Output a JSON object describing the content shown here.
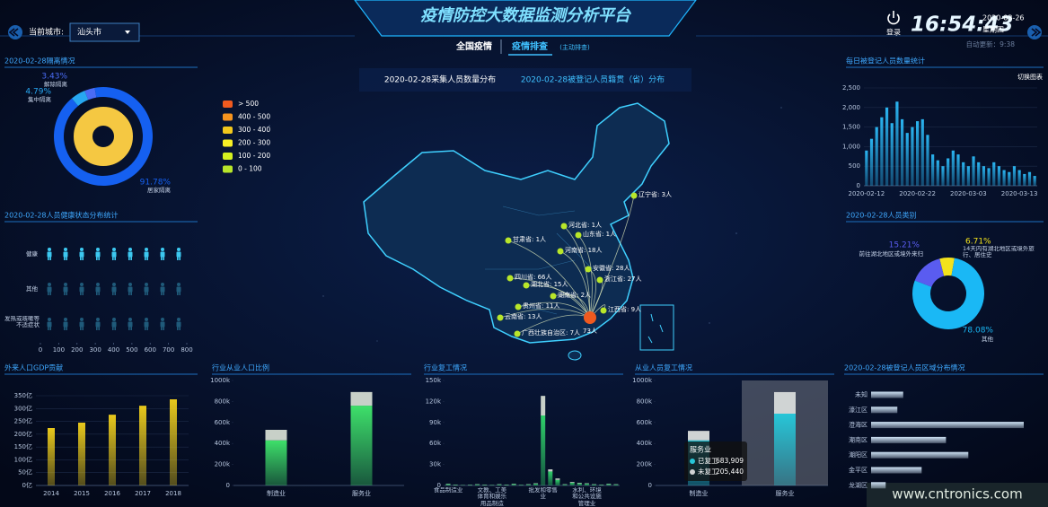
{
  "header": {
    "title": "疫情防控大数据监测分析平台",
    "city_label": "当前城市:",
    "city": "汕头市",
    "tabs": [
      "全国疫情",
      "疫情排查"
    ],
    "tab_note": "(主动排查)",
    "login": "登录",
    "time": "16:54:43",
    "date": "2020-03-26",
    "weekday": "星期四",
    "auto_update": "自动更新：9:38"
  },
  "watermark": "www.cntronics.com",
  "chart_data": [
    {
      "type": "donut",
      "title": "2020-02-28隔离情况",
      "categories": [
        "解除隔离",
        "集中隔离",
        "居家隔离"
      ],
      "values": [
        3.43,
        4.79,
        91.78
      ],
      "value_labels": [
        "3.43%",
        "4.79%",
        "91.78%"
      ],
      "colors": [
        "#4a6cf5",
        "#27a8f2",
        "#1560f0"
      ]
    },
    {
      "type": "pictorial",
      "title": "2020-02-28人员健康状态分布统计",
      "categories": [
        "健康",
        "其他",
        "发热或咳嗽等不适症状"
      ],
      "values": [
        780,
        8,
        2
      ],
      "xlim": [
        0,
        800
      ],
      "xticks": [
        0,
        100,
        200,
        300,
        400,
        500,
        600,
        700,
        800
      ],
      "color": "#3cc8f0"
    },
    {
      "type": "bar",
      "title": "外来人口GDP贡献",
      "categories": [
        "2014",
        "2015",
        "2016",
        "2017",
        "2018"
      ],
      "values": [
        224,
        245,
        276,
        311,
        336
      ],
      "color": "#e8c81c",
      "ylim": [
        0,
        350
      ],
      "yticks": [
        {
          "value": 0,
          "label": "0亿"
        },
        {
          "value": 50,
          "label": "50亿"
        },
        {
          "value": 100,
          "label": "100亿"
        },
        {
          "value": 150,
          "label": "150亿"
        },
        {
          "value": 200,
          "label": "200亿"
        },
        {
          "value": 250,
          "label": "250亿"
        },
        {
          "value": 300,
          "label": "300亿"
        },
        {
          "value": 350,
          "label": "350亿"
        }
      ]
    },
    {
      "type": "stacked-bar",
      "title": "行业从业人口比例",
      "categories": [
        "制造业",
        "服务业"
      ],
      "series": [
        {
          "color": "#3ee06a",
          "values": [
            430000,
            760000
          ]
        },
        {
          "color": "#c8d0c8",
          "values": [
            100000,
            130000
          ]
        }
      ],
      "ylim": [
        0,
        1000000
      ],
      "yticks": [
        0,
        {
          "value": 200000,
          "label": "200k"
        },
        {
          "value": 400000,
          "label": "400k"
        },
        {
          "value": 600000,
          "label": "600k"
        },
        {
          "value": 800000,
          "label": "800k"
        },
        {
          "value": 1000000,
          "label": "1000k"
        }
      ]
    },
    {
      "type": "stacked-bar",
      "title": "行业复工情况",
      "categories": [
        "食品制造业",
        null,
        null,
        null,
        null,
        null,
        "文教、工美体育和娱乐用品制造",
        null,
        null,
        null,
        null,
        null,
        null,
        "批发和零售业",
        null,
        null,
        null,
        null,
        null,
        "水利、环境和公共设施管理业",
        null,
        null,
        null,
        null
      ],
      "series": [
        {
          "color": "#2fd06a",
          "values": [
            2000,
            1000,
            500,
            800,
            1500,
            1000,
            600,
            1500,
            1000,
            2000,
            800,
            1500,
            2500,
            100000,
            20000,
            8000,
            1500,
            4000,
            3000,
            2500,
            1500,
            1000,
            2000,
            1500
          ]
        },
        {
          "color": "#c8d0c8",
          "values": [
            500,
            300,
            200,
            300,
            400,
            300,
            200,
            400,
            300,
            500,
            200,
            400,
            600,
            28000,
            3000,
            2000,
            400,
            1000,
            800,
            600,
            400,
            300,
            500,
            400
          ]
        }
      ],
      "ylim": [
        0,
        150000
      ],
      "yticks": [
        0,
        {
          "value": 30000,
          "label": "30k"
        },
        {
          "value": 60000,
          "label": "60k"
        },
        {
          "value": 90000,
          "label": "90k"
        },
        {
          "value": 120000,
          "label": "120k"
        },
        {
          "value": 150000,
          "label": "150k"
        }
      ]
    },
    {
      "type": "stacked-bar",
      "title": "从业人员复工情况",
      "categories": [
        "制造业",
        "服务业"
      ],
      "series": [
        {
          "name": "已复工",
          "color": "#27c6d8",
          "values": [
            430000,
            683909
          ],
          "value_labels": [
            null,
            "683,909"
          ]
        },
        {
          "name": "未复工",
          "color": "#d0d4d4",
          "values": [
            90000,
            205440
          ],
          "value_labels": [
            null,
            "205,440"
          ]
        }
      ],
      "ylim": [
        0,
        1000000
      ],
      "yticks": [
        0,
        {
          "value": 200000,
          "label": "200k"
        },
        {
          "value": 400000,
          "label": "400k"
        },
        {
          "value": 600000,
          "label": "600k"
        },
        {
          "value": 800000,
          "label": "800k"
        },
        {
          "value": 1000000,
          "label": "1000k"
        }
      ]
    },
    {
      "type": "bar",
      "title": "每日被登记人员数量统计",
      "button": "切换图表",
      "categories": [
        "2020-02-12",
        null,
        null,
        null,
        null,
        null,
        null,
        null,
        null,
        null,
        "2020-02-22",
        null,
        null,
        null,
        null,
        null,
        null,
        null,
        null,
        null,
        "2020-03-03",
        null,
        null,
        null,
        null,
        null,
        null,
        null,
        null,
        null,
        "2020-03-13",
        null,
        null,
        null
      ],
      "values": [
        900,
        1200,
        1500,
        1750,
        2000,
        1600,
        2150,
        1700,
        1350,
        1500,
        1650,
        1700,
        1300,
        800,
        650,
        500,
        700,
        900,
        800,
        600,
        500,
        750,
        600,
        500,
        450,
        600,
        500,
        400,
        350,
        500,
        400,
        300,
        350,
        250
      ],
      "color": "#2ab4f0",
      "ylim": [
        0,
        2500
      ],
      "yticks": [
        0,
        500,
        {
          "value": 1000,
          "label": "1,000"
        },
        {
          "value": 1500,
          "label": "1,500"
        },
        {
          "value": 2000,
          "label": "2,000"
        },
        {
          "value": 2500,
          "label": "2,500"
        }
      ]
    },
    {
      "type": "donut",
      "title": "2020-02-28人员类别",
      "categories": [
        "14天内有湖北地区或境外旅行、居住史",
        "前往湖北地区或境外来归",
        "其他"
      ],
      "values": [
        6.71,
        15.21,
        78.08
      ],
      "value_labels": [
        "6.71%",
        "15.21%",
        "78.08%"
      ],
      "colors": [
        "#f2e21c",
        "#5a5cf0",
        "#1ab8f5"
      ]
    },
    {
      "type": "hbar",
      "title": "2020-02-28被登记人员区域分布情况",
      "categories": [
        "未知",
        "濠江区",
        "澄海区",
        "潮南区",
        "潮阳区",
        "金平区",
        "龙湖区"
      ],
      "values": [
        33,
        27,
        157,
        77,
        100,
        52,
        15
      ],
      "color": "#cfe3f5"
    },
    {
      "type": "map",
      "titles": [
        "2020-02-28采集人员数量分布",
        "2020-02-28被登记人员籍贯（省）分布"
      ],
      "legend": [
        {
          "label": "> 500",
          "color": "#f05a1f"
        },
        {
          "label": "400 - 500",
          "color": "#f5931e"
        },
        {
          "label": "300 - 400",
          "color": "#f2c81c"
        },
        {
          "label": "200 - 300",
          "color": "#f7ef25"
        },
        {
          "label": "100 - 200",
          "color": "#d4f020"
        },
        {
          "label": "0 - 100",
          "color": "#b8e62a"
        }
      ],
      "points": [
        {
          "label": "辽宁省: 3人",
          "value": 3,
          "color": "#b8e62a"
        },
        {
          "label": "河北省: 1人",
          "value": 1,
          "color": "#b8e62a"
        },
        {
          "label": "山东省: 1人",
          "value": 1,
          "color": "#b8e62a"
        },
        {
          "label": "甘肃省: 1人",
          "value": 1,
          "color": "#b8e62a"
        },
        {
          "label": "河南省: 18人",
          "value": 18,
          "color": "#b8e62a"
        },
        {
          "label": "安徽省: 28人",
          "value": 28,
          "color": "#b8e62a"
        },
        {
          "label": "四川省: 66人",
          "value": 66,
          "color": "#b8e62a"
        },
        {
          "label": "湖北省: 15人",
          "value": 15,
          "color": "#b8e62a"
        },
        {
          "label": "浙江省: 27人",
          "value": 27,
          "color": "#b8e62a"
        },
        {
          "label": "湖南省: 2人",
          "value": 2,
          "color": "#b8e62a"
        },
        {
          "label": "贵州省: 11人",
          "value": 11,
          "color": "#b8e62a"
        },
        {
          "label": "江西省: 9人",
          "value": 9,
          "color": "#b8e62a"
        },
        {
          "label": "云南省: 13人",
          "value": 13,
          "color": "#b8e62a"
        },
        {
          "label": "广西壮族自治区: 7人",
          "value": 7,
          "color": "#b8e62a"
        },
        {
          "label": "73人",
          "value": 73,
          "color": "#f05a1f"
        }
      ]
    }
  ]
}
